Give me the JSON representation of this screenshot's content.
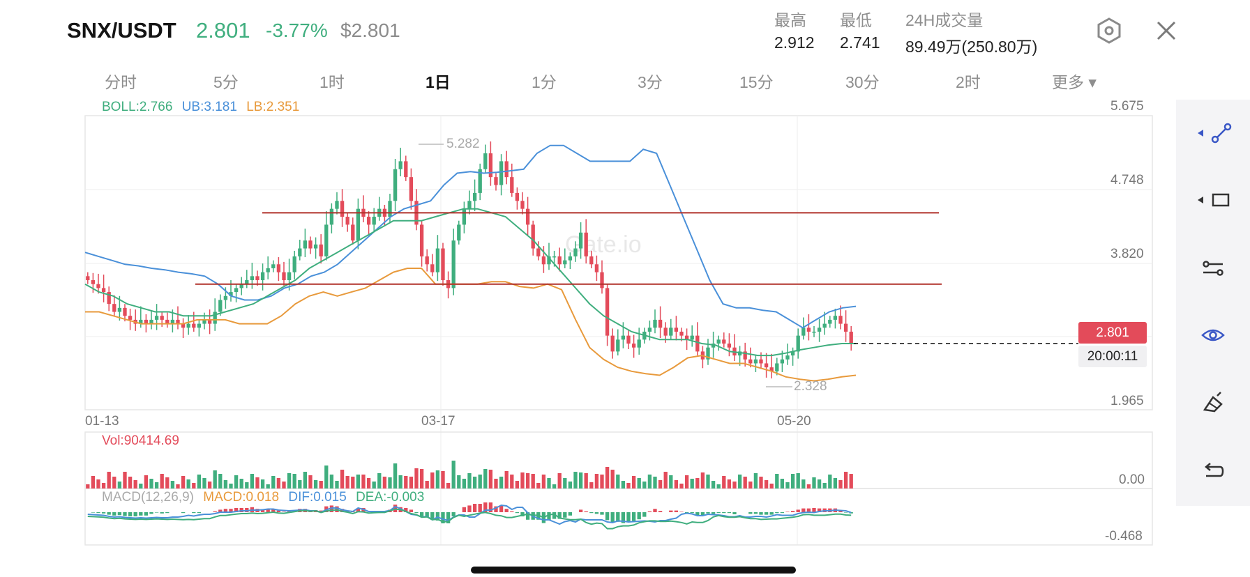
{
  "header": {
    "pair": "SNX/USDT",
    "last_price": "2.801",
    "change_pct": "-3.77%",
    "usd_price": "$2.801",
    "stats": [
      {
        "label": "最高",
        "value": "2.912"
      },
      {
        "label": "最低",
        "value": "2.741"
      },
      {
        "label": "24H成交量",
        "value": "89.49万(250.80万)"
      }
    ],
    "settings_icon": "hexagon-settings-icon",
    "close_icon": "close-icon"
  },
  "tabs": [
    {
      "label": "分时",
      "active": false
    },
    {
      "label": "5分",
      "active": false
    },
    {
      "label": "1时",
      "active": false
    },
    {
      "label": "1日",
      "active": true
    },
    {
      "label": "1分",
      "active": false
    },
    {
      "label": "3分",
      "active": false
    },
    {
      "label": "15分",
      "active": false
    },
    {
      "label": "30分",
      "active": false
    },
    {
      "label": "2时",
      "active": false
    },
    {
      "label": "更多 ▾",
      "active": false
    }
  ],
  "indicators": {
    "boll": "BOLL:2.766",
    "ub": "UB:3.181",
    "lb": "LB:2.351",
    "vol": "Vol:90414.69",
    "macd_name": "MACD(12,26,9)",
    "macd": "MACD:0.018",
    "dif": "DIF:0.015",
    "dea": "DEA:-0.003"
  },
  "colors": {
    "up": "#3fae7e",
    "down": "#e34b5a",
    "ub_line": "#4a90d9",
    "mid_line": "#3fae7e",
    "lb_line": "#e89a3c",
    "trend_line": "#b0302a"
  },
  "chart_data": {
    "type": "candlestick",
    "y_ticks": [
      "5.675",
      "4.748",
      "3.820",
      "1.965"
    ],
    "x_ticks": [
      "01-13",
      "03-17",
      "05-20"
    ],
    "annotations": {
      "high_label": "5.282",
      "low_label": "2.328"
    },
    "ylim": [
      1.965,
      5.675
    ],
    "current_price": "2.801",
    "countdown": "20:00:11",
    "horizontal_lines": [
      4.45,
      3.55
    ],
    "close_series": [
      3.6,
      3.55,
      3.5,
      3.45,
      3.3,
      3.2,
      3.25,
      3.15,
      3.1,
      3.05,
      3.1,
      3.05,
      3.1,
      3.15,
      3.1,
      3.05,
      3.1,
      3.05,
      3.0,
      3.05,
      3.0,
      3.05,
      3.1,
      3.05,
      3.2,
      3.35,
      3.4,
      3.45,
      3.5,
      3.55,
      3.6,
      3.65,
      3.6,
      3.7,
      3.75,
      3.8,
      3.7,
      3.6,
      3.7,
      3.9,
      4.0,
      4.1,
      4.0,
      4.05,
      3.9,
      4.3,
      4.5,
      4.6,
      4.4,
      4.3,
      4.1,
      4.5,
      4.4,
      4.3,
      4.4,
      4.5,
      4.4,
      4.6,
      5.0,
      5.1,
      4.9,
      4.6,
      4.3,
      3.9,
      3.8,
      3.7,
      4.0,
      3.6,
      3.5,
      4.1,
      4.3,
      4.5,
      4.6,
      4.7,
      5.0,
      5.2,
      4.9,
      4.8,
      5.1,
      4.9,
      4.7,
      4.6,
      4.5,
      4.3,
      4.0,
      3.9,
      3.8,
      3.9,
      3.9,
      3.8,
      3.85,
      3.9,
      4.0,
      4.2,
      3.9,
      3.8,
      3.7,
      3.5,
      2.9,
      2.7,
      2.85,
      2.9,
      2.8,
      2.75,
      2.85,
      2.95,
      3.0,
      3.1,
      3.0,
      2.9,
      3.0,
      2.95,
      2.9,
      2.85,
      2.9,
      2.7,
      2.6,
      2.75,
      2.8,
      2.85,
      2.8,
      2.75,
      2.65,
      2.7,
      2.6,
      2.55,
      2.6,
      2.55,
      2.5,
      2.45,
      2.55,
      2.6,
      2.65,
      2.7,
      2.9,
      3.0,
      2.95,
      2.95,
      3.0,
      3.05,
      3.1,
      3.15,
      3.05,
      2.95,
      2.801
    ],
    "ub_series": [
      3.95,
      3.9,
      3.85,
      3.8,
      3.78,
      3.75,
      3.73,
      3.7,
      3.68,
      3.65,
      3.55,
      3.4,
      3.35,
      3.35,
      3.4,
      3.5,
      3.55,
      3.65,
      3.7,
      3.8,
      3.95,
      4.1,
      4.25,
      4.4,
      4.5,
      4.55,
      4.6,
      4.8,
      4.95,
      4.97,
      4.95,
      4.96,
      4.98,
      5.0,
      5.2,
      5.3,
      5.3,
      5.2,
      5.1,
      5.1,
      5.1,
      5.1,
      5.25,
      5.2,
      4.8,
      4.4,
      4.0,
      3.6,
      3.3,
      3.25,
      3.25,
      3.22,
      3.2,
      3.1,
      3.0,
      3.1,
      3.2,
      3.25,
      3.27
    ],
    "mid_series": [
      3.55,
      3.45,
      3.4,
      3.3,
      3.25,
      3.2,
      3.2,
      3.15,
      3.15,
      3.15,
      3.2,
      3.25,
      3.3,
      3.4,
      3.5,
      3.6,
      3.75,
      3.85,
      3.95,
      4.05,
      4.15,
      4.25,
      4.35,
      4.35,
      4.35,
      4.4,
      4.45,
      4.5,
      4.5,
      4.45,
      4.4,
      4.25,
      4.1,
      3.9,
      3.7,
      3.5,
      3.3,
      3.15,
      3.05,
      2.95,
      2.9,
      2.85,
      2.85,
      2.85,
      2.8,
      2.78,
      2.7,
      2.68,
      2.65,
      2.65,
      2.68,
      2.72,
      2.75,
      2.78,
      2.8,
      2.8
    ],
    "lb_series": [
      3.2,
      3.2,
      3.15,
      3.1,
      3.05,
      3.05,
      3.05,
      3.05,
      3.1,
      3.1,
      3.1,
      3.05,
      3.05,
      3.05,
      3.15,
      3.3,
      3.4,
      3.45,
      3.4,
      3.45,
      3.5,
      3.6,
      3.7,
      3.75,
      3.75,
      3.55,
      3.55,
      3.55,
      3.55,
      3.58,
      3.58,
      3.52,
      3.5,
      3.55,
      3.48,
      3.1,
      2.75,
      2.6,
      2.5,
      2.45,
      2.42,
      2.4,
      2.5,
      2.62,
      2.65,
      2.6,
      2.55,
      2.55,
      2.5,
      2.45,
      2.38,
      2.35,
      2.33,
      2.35,
      2.38,
      2.4
    ],
    "vol_axis": [
      "0.00"
    ],
    "macd_axis": [
      "-0.468"
    ]
  }
}
